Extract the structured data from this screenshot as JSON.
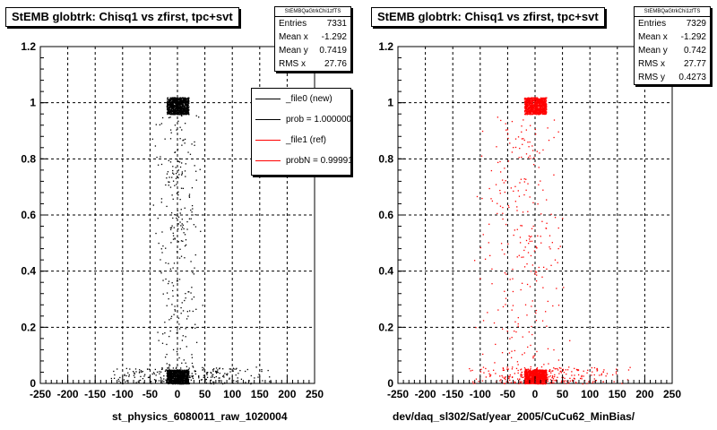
{
  "chart_data": [
    {
      "type": "scatter",
      "title": "StEMB globtrk: Chisq1 vs zfirst, tpc+svt",
      "xlabel": "st_physics_6080011_raw_1020004",
      "ylabel": "",
      "xlim": [
        -250,
        250
      ],
      "ylim": [
        0,
        1.2
      ],
      "xticks": [
        -250,
        -200,
        -150,
        -100,
        -50,
        0,
        50,
        100,
        150,
        200,
        250
      ],
      "yticks": [
        0,
        0.2,
        0.4,
        0.6,
        0.8,
        1,
        1.2
      ],
      "grid": true,
      "marker_color": "#000000",
      "clusters": [
        {
          "x_range": [
            -20,
            20
          ],
          "y_range": [
            0.96,
            1.02
          ],
          "density": "dense"
        },
        {
          "x_range": [
            -20,
            20
          ],
          "y_range": [
            0.0,
            0.05
          ],
          "density": "dense"
        },
        {
          "x_range": [
            -150,
            180
          ],
          "y_range": [
            0.0,
            0.06
          ],
          "density": "moderate"
        },
        {
          "x_range": [
            -60,
            60
          ],
          "y_range": [
            0.05,
            0.96
          ],
          "density": "sparse"
        }
      ],
      "stats": {
        "name": "StEMBQaGtrkChi1zfTS",
        "entries": {
          "label": "Entries",
          "value": "7331"
        },
        "mean_x": {
          "label": "Mean x",
          "value": "-1.292"
        },
        "mean_y": {
          "label": "Mean y",
          "value": "0.7419"
        },
        "rms_x": {
          "label": "RMS x",
          "value": "27.76"
        }
      },
      "legend": {
        "placement": "top-right",
        "entries": [
          {
            "label": "_file0 (new)",
            "color": "#000000"
          },
          {
            "label": "prob = 1.000000",
            "color": "#000000"
          },
          {
            "label": "_file1 (ref)",
            "color": "#ff0000"
          },
          {
            "label": "probN = 0.999910",
            "color": "#ff0000"
          }
        ]
      }
    },
    {
      "type": "scatter",
      "title": "StEMB globtrk: Chisq1 vs zfirst, tpc+svt",
      "xlabel": "dev/daq_sl302/Sat/year_2005/CuCu62_MinBias/",
      "ylabel": "",
      "xlim": [
        -250,
        250
      ],
      "ylim": [
        0,
        1.2
      ],
      "xticks": [
        -250,
        -200,
        -150,
        -100,
        -50,
        0,
        50,
        100,
        150,
        200,
        250
      ],
      "yticks": [
        0,
        0.2,
        0.4,
        0.6,
        0.8,
        1,
        1.2
      ],
      "grid": true,
      "marker_color": "#ff0000",
      "clusters": [
        {
          "x_range": [
            -20,
            20
          ],
          "y_range": [
            0.96,
            1.02
          ],
          "density": "dense"
        },
        {
          "x_range": [
            -20,
            20
          ],
          "y_range": [
            0.0,
            0.05
          ],
          "density": "dense"
        },
        {
          "x_range": [
            -150,
            180
          ],
          "y_range": [
            0.0,
            0.06
          ],
          "density": "moderate"
        },
        {
          "x_range": [
            -130,
            80
          ],
          "y_range": [
            0.05,
            0.96
          ],
          "density": "sparse"
        }
      ],
      "stats": {
        "name": "StEMBQaGtrkChi1zfTS",
        "entries": {
          "label": "Entries",
          "value": "7329"
        },
        "mean_x": {
          "label": "Mean x",
          "value": "-1.292"
        },
        "mean_y": {
          "label": "Mean y",
          "value": "0.742"
        },
        "rms_x": {
          "label": "RMS x",
          "value": "27.77"
        },
        "rms_y": {
          "label": "RMS y",
          "value": "0.4273"
        }
      }
    }
  ]
}
